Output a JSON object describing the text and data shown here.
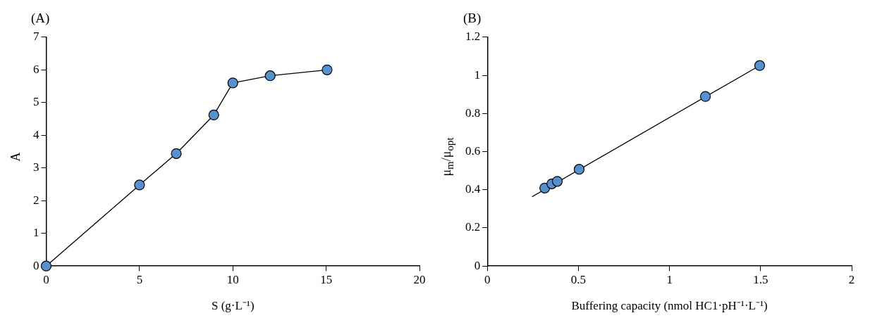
{
  "chart_data": [
    {
      "type": "line",
      "title": "(A)",
      "xlabel": "S (g·L⁻¹)",
      "ylabel": "A",
      "xlim": [
        0,
        20
      ],
      "xticks": [
        0,
        5,
        10,
        15,
        20
      ],
      "ylim": [
        0,
        7
      ],
      "yticks": [
        0,
        1,
        2,
        3,
        4,
        5,
        6,
        7
      ],
      "grid": false,
      "marker": "circle",
      "series": [
        {
          "color": "#5590cf",
          "x": [
            0,
            5.0,
            6.97,
            8.98,
            10.0,
            12.0,
            15.05
          ],
          "values": [
            0,
            2.48,
            3.44,
            4.62,
            5.6,
            5.82,
            6.0
          ]
        }
      ]
    },
    {
      "type": "scatter",
      "title": "(B)",
      "xlabel": "Buffering capacity (nmol HC1·pH⁻¹·L⁻¹)",
      "ylabel": "μ$_{m}$/μ$_{opt}$",
      "xlim": [
        0,
        2
      ],
      "xticks": [
        0,
        0.5,
        1,
        1.5,
        2
      ],
      "ylim": [
        0,
        1.2
      ],
      "yticks": [
        0,
        0.2,
        0.4,
        0.6,
        0.8,
        1,
        1.2
      ],
      "grid": false,
      "marker": "circle",
      "series": [
        {
          "type": "line",
          "color": "#000000",
          "marker": "none",
          "x": [
            0.245,
            1.495
          ],
          "values": [
            0.363,
            1.051
          ]
        },
        {
          "color": "#5590cf",
          "x": [
            0.315,
            0.354,
            0.384,
            0.504,
            1.197,
            1.495
          ],
          "values": [
            0.409,
            0.431,
            0.444,
            0.507,
            0.889,
            1.051
          ]
        }
      ]
    }
  ]
}
